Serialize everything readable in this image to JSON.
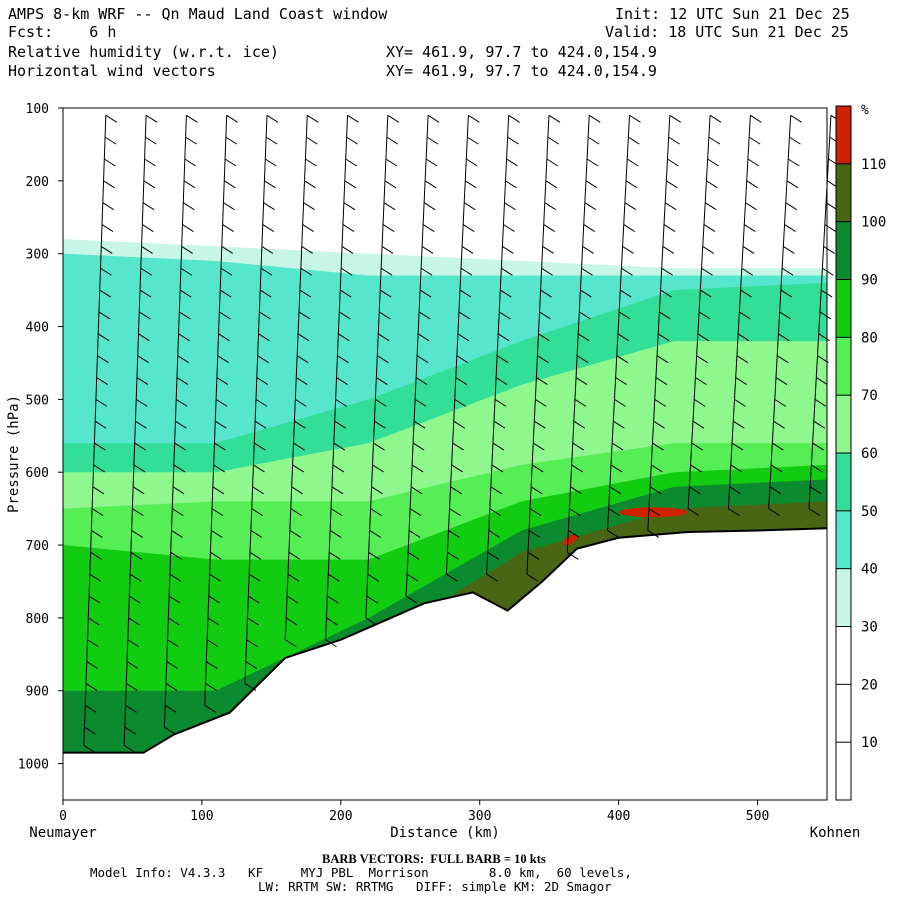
{
  "header": {
    "title": "AMPS 8-km WRF -- Qn Maud Land Coast window",
    "init": "Init: 12 UTC Sun 21 Dec 25",
    "fcst": "Fcst:    6 h",
    "valid": "Valid: 18 UTC Sun 21 Dec 25",
    "field1": "Relative humidity (w.r.t. ice)",
    "field1_xy": "XY= 461.9, 97.7 to 424.0,154.9",
    "field2": "Horizontal wind vectors",
    "field2_xy": "XY= 461.9, 97.7 to 424.0,154.9"
  },
  "footer": {
    "barb_note": "BARB VECTORS:  FULL BARB = 10 kts",
    "model_line1": "Model Info: V4.3.3   KF     MYJ PBL  Morrison        8.0 km,  60 levels,",
    "model_line2": "LW: RRTM SW: RRTMG   DIFF: simple KM: 2D Smagor"
  },
  "chart_data": {
    "type": "heatmap",
    "title": "Relative humidity (w.r.t. ice)",
    "xlabel": "Distance (km)",
    "ylabel": "Pressure (hPa)",
    "x_ticks": [
      "0",
      "100",
      "200",
      "300",
      "400",
      "500"
    ],
    "x_tick_values": [
      0,
      100,
      200,
      300,
      400,
      500
    ],
    "xlim": [
      0,
      550
    ],
    "y_ticks": [
      "100",
      "200",
      "300",
      "400",
      "500",
      "600",
      "700",
      "800",
      "900",
      "1000"
    ],
    "y_tick_values": [
      100,
      200,
      300,
      400,
      500,
      600,
      700,
      800,
      900,
      1000
    ],
    "ylim": [
      1050,
      100
    ],
    "left_endpoint": "Neumayer",
    "right_endpoint": "Kohnen",
    "colorbar": {
      "unit": "%",
      "labels": [
        "10",
        "20",
        "30",
        "40",
        "50",
        "60",
        "70",
        "80",
        "90",
        "100",
        "110"
      ],
      "levels": [
        10,
        20,
        30,
        40,
        50,
        60,
        70,
        80,
        90,
        100,
        110
      ],
      "colors": [
        "#ffffff",
        "#ffffff",
        "#ffffff",
        "#c8f6e6",
        "#55e6cd",
        "#33de99",
        "#8ef88e",
        "#55ee55",
        "#11cc11",
        "#0b8a2f",
        "#486614",
        "#cc2200"
      ]
    },
    "terrain": {
      "distance_km": [
        0,
        58,
        80,
        120,
        160,
        200,
        230,
        260,
        295,
        320,
        345,
        370,
        400,
        450,
        500,
        550
      ],
      "surface_pressure_hpa": [
        985,
        985,
        960,
        930,
        855,
        830,
        805,
        780,
        765,
        790,
        750,
        705,
        690,
        682,
        680,
        677
      ]
    },
    "rh_bands": [
      {
        "rh": 30,
        "top_hpa": [
          280,
          290,
          300,
          310,
          320,
          320
        ],
        "bottom_hpa": [
          1000,
          1000,
          1000,
          1000,
          1000,
          1000
        ]
      },
      {
        "rh": 40,
        "top_hpa": [
          300,
          310,
          330,
          330,
          330,
          330
        ],
        "bottom_hpa": [
          1000,
          1000,
          1000,
          1000,
          1000,
          1000
        ]
      },
      {
        "rh": 50,
        "top_hpa": [
          560,
          560,
          500,
          420,
          350,
          340
        ],
        "bottom_hpa": [
          1000,
          1000,
          1000,
          1000,
          1000,
          1000
        ]
      },
      {
        "rh": 60,
        "top_hpa": [
          600,
          600,
          560,
          480,
          420,
          420
        ],
        "bottom_hpa": [
          1000,
          1000,
          1000,
          1000,
          1000,
          1000
        ]
      },
      {
        "rh": 70,
        "top_hpa": [
          650,
          640,
          640,
          590,
          560,
          560
        ],
        "bottom_hpa": [
          1000,
          1000,
          1000,
          1000,
          1000,
          1000
        ]
      },
      {
        "rh": 80,
        "top_hpa": [
          700,
          720,
          720,
          640,
          600,
          590
        ],
        "bottom_hpa": [
          1000,
          1000,
          1000,
          1000,
          1000,
          1000
        ]
      },
      {
        "rh": 90,
        "top_hpa": [
          900,
          900,
          800,
          680,
          620,
          610
        ],
        "bottom_hpa": [
          1000,
          1000,
          1000,
          1000,
          1000,
          1000
        ]
      },
      {
        "rh": 100,
        "top_hpa": [
          1000,
          1000,
          840,
          710,
          650,
          640
        ],
        "bottom_hpa": [
          1000,
          1000,
          1000,
          1000,
          1000,
          1000
        ]
      }
    ],
    "rh_band_x_km": [
      0,
      110,
      220,
      330,
      440,
      550
    ],
    "wind_barb_columns_km": [
      15,
      44,
      73,
      102,
      131,
      160,
      189,
      218,
      247,
      276,
      305,
      334,
      363,
      392,
      421,
      450,
      479,
      508,
      537
    ],
    "wind_barb_levels_hpa": [
      110,
      140,
      170,
      200,
      230,
      260,
      290,
      320,
      350,
      380,
      410,
      440,
      470,
      500,
      530,
      560,
      590,
      620,
      650,
      680,
      710,
      740,
      770,
      800,
      830,
      860,
      890,
      920,
      950,
      975
    ]
  }
}
